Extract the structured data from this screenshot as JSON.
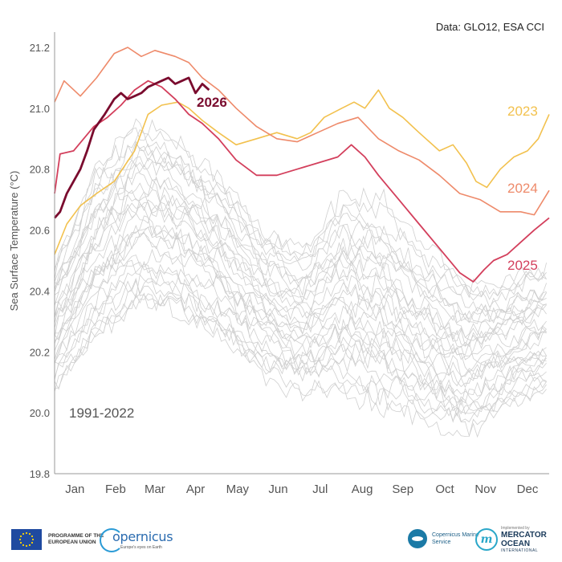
{
  "source": "Data: GLO12, ESA CCI",
  "footer": {
    "eu_text": "PROGRAMME OF THE EUROPEAN UNION",
    "copernicus": "opernicus",
    "copernicus_sub": "Europe's eyes on Earth",
    "cms": "Copernicus Marine Service",
    "mo_pre": "Implemented by",
    "mo_name": "MERCATOR OCEAN",
    "mo_sub": "INTERNATIONAL"
  },
  "colors": {
    "historical": "#cfcfcf",
    "2023": "#f2c14e",
    "2024": "#ee8a6a",
    "2025": "#d33f5c",
    "2026": "#7a0b2e"
  },
  "chart_data": {
    "type": "line",
    "title": "",
    "xlabel": "",
    "ylabel": "Sea Surface Temperature (°C)",
    "ylim": [
      19.8,
      21.25
    ],
    "yticks": [
      19.8,
      20.0,
      20.2,
      20.4,
      20.6,
      20.8,
      21.0,
      21.2
    ],
    "xlim": [
      1,
      366
    ],
    "month_labels": [
      "Jan",
      "Feb",
      "Mar",
      "Apr",
      "May",
      "Jun",
      "Jul",
      "Aug",
      "Sep",
      "Oct",
      "Nov",
      "Dec"
    ],
    "month_mid_days": [
      16,
      46,
      75,
      105,
      136,
      166,
      197,
      228,
      258,
      289,
      319,
      350
    ],
    "grid": false,
    "historical": {
      "label": "1991-2022",
      "band_low": [
        20.05,
        20.22,
        20.32,
        20.3,
        20.22,
        20.1,
        20.05,
        20.05,
        20.0,
        19.95,
        19.9,
        20.0,
        20.05
      ],
      "band_high": [
        20.5,
        20.82,
        20.98,
        20.92,
        20.8,
        20.62,
        20.55,
        20.72,
        20.7,
        20.55,
        20.45,
        20.45,
        20.5
      ]
    },
    "series": [
      {
        "name": "2023",
        "x": [
          1,
          10,
          20,
          32,
          45,
          60,
          70,
          80,
          92,
          100,
          110,
          122,
          135,
          150,
          165,
          180,
          190,
          200,
          213,
          222,
          230,
          240,
          248,
          258,
          270,
          285,
          295,
          305,
          312,
          320,
          330,
          340,
          350,
          358,
          366
        ],
        "y": [
          20.52,
          20.62,
          20.68,
          20.72,
          20.76,
          20.86,
          20.98,
          21.01,
          21.02,
          21.0,
          20.96,
          20.92,
          20.88,
          20.9,
          20.92,
          20.9,
          20.92,
          20.97,
          21.0,
          21.02,
          21.0,
          21.06,
          21.0,
          20.97,
          20.92,
          20.86,
          20.88,
          20.82,
          20.76,
          20.74,
          20.8,
          20.84,
          20.86,
          20.9,
          20.98
        ]
      },
      {
        "name": "2024",
        "x": [
          1,
          8,
          20,
          32,
          45,
          55,
          65,
          75,
          90,
          100,
          110,
          122,
          135,
          150,
          165,
          180,
          195,
          210,
          225,
          240,
          255,
          270,
          285,
          300,
          315,
          330,
          345,
          355,
          366
        ],
        "y": [
          21.02,
          21.09,
          21.04,
          21.1,
          21.18,
          21.2,
          21.17,
          21.19,
          21.17,
          21.15,
          21.1,
          21.06,
          21.0,
          20.94,
          20.9,
          20.89,
          20.92,
          20.95,
          20.97,
          20.9,
          20.86,
          20.83,
          20.78,
          20.72,
          20.7,
          20.66,
          20.66,
          20.65,
          20.73
        ]
      },
      {
        "name": "2025",
        "x": [
          1,
          5,
          15,
          30,
          40,
          50,
          60,
          70,
          80,
          90,
          100,
          110,
          122,
          135,
          150,
          165,
          180,
          195,
          210,
          220,
          230,
          240,
          255,
          270,
          285,
          300,
          310,
          318,
          325,
          335,
          345,
          355,
          366
        ],
        "y": [
          20.72,
          20.85,
          20.86,
          20.94,
          20.97,
          21.01,
          21.06,
          21.09,
          21.07,
          21.03,
          20.98,
          20.95,
          20.9,
          20.83,
          20.78,
          20.78,
          20.8,
          20.82,
          20.84,
          20.88,
          20.84,
          20.78,
          20.7,
          20.62,
          20.54,
          20.46,
          20.43,
          20.47,
          20.5,
          20.52,
          20.56,
          20.6,
          20.64
        ]
      },
      {
        "name": "2026",
        "x": [
          1,
          5,
          10,
          15,
          20,
          25,
          30,
          38,
          45,
          50,
          55,
          60,
          65,
          70,
          75,
          80,
          85,
          90,
          95,
          100,
          105,
          110,
          115
        ],
        "y": [
          20.64,
          20.66,
          20.72,
          20.76,
          20.8,
          20.86,
          20.93,
          20.98,
          21.03,
          21.05,
          21.03,
          21.04,
          21.05,
          21.07,
          21.08,
          21.09,
          21.1,
          21.08,
          21.09,
          21.1,
          21.05,
          21.08,
          21.06
        ]
      }
    ]
  }
}
